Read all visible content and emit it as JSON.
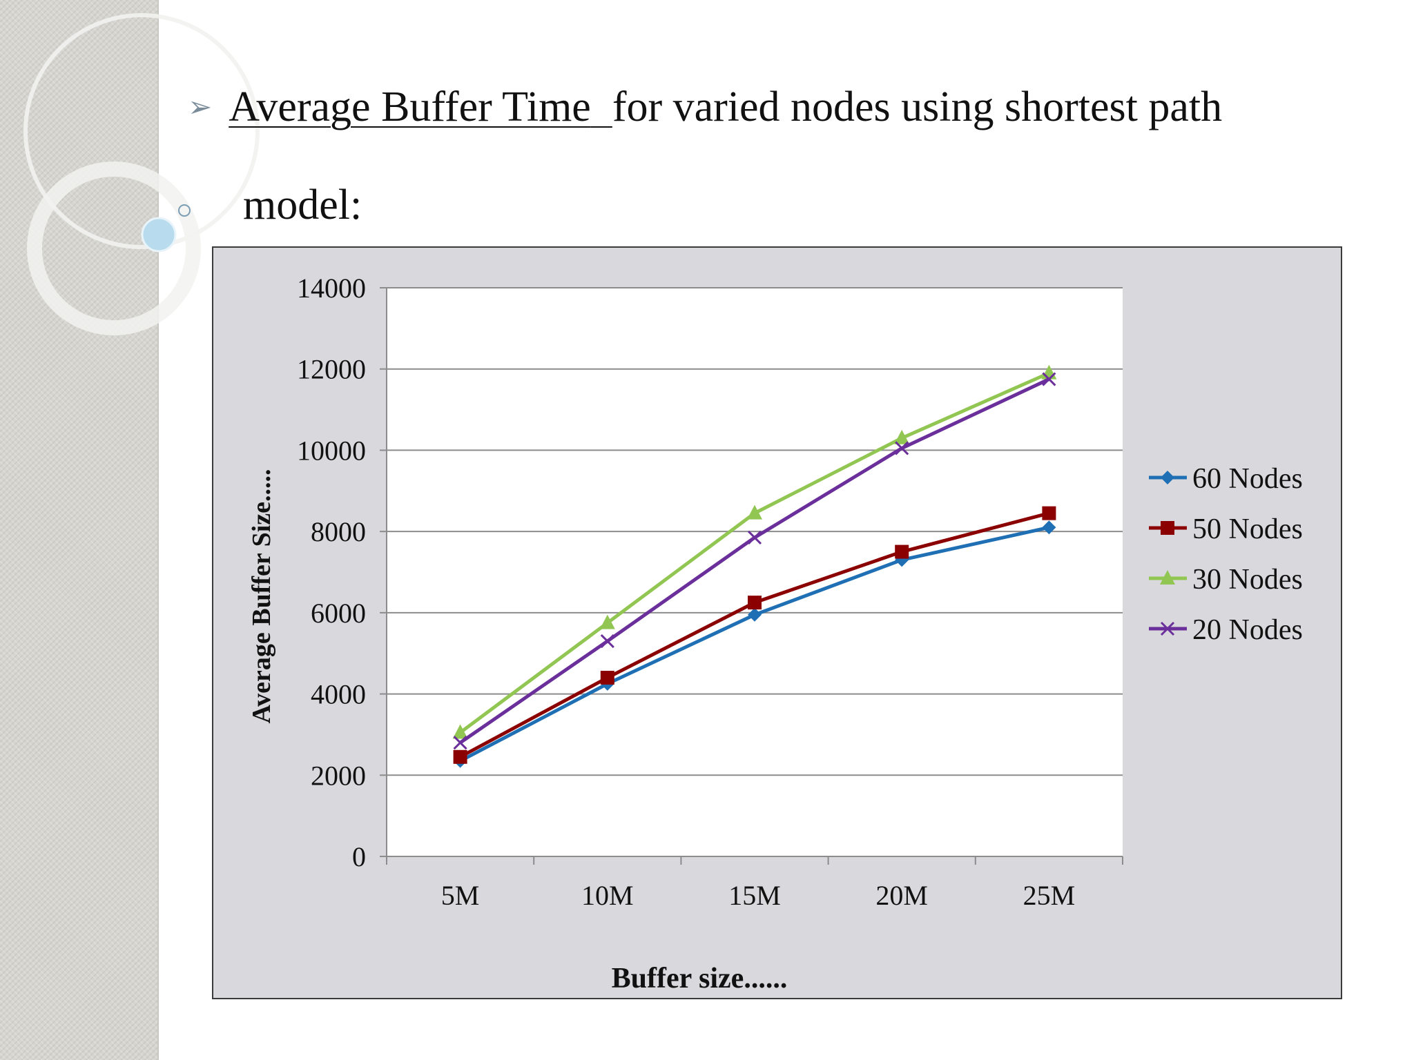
{
  "slide": {
    "title_underlined": "Average Buffer Time",
    "title_rest": "for varied nodes using shortest path",
    "title_line2": "model:"
  },
  "chart_data": {
    "type": "line",
    "categories": [
      "5M",
      "10M",
      "15M",
      "20M",
      "25M"
    ],
    "xlabel": "Buffer size......",
    "ylabel": "Average Buffer Size.....",
    "ylim": [
      0,
      14000
    ],
    "yticks": [
      0,
      2000,
      4000,
      6000,
      8000,
      10000,
      12000,
      14000
    ],
    "grid": true,
    "legend_position": "right",
    "series": [
      {
        "name": "60 Nodes",
        "values": [
          2350,
          4250,
          5950,
          7300,
          8100
        ],
        "color": "#1f6fb5",
        "marker": "diamond"
      },
      {
        "name": "50 Nodes",
        "values": [
          2450,
          4400,
          6250,
          7500,
          8450
        ],
        "color": "#8b0000",
        "marker": "square"
      },
      {
        "name": "30 Nodes",
        "values": [
          3050,
          5750,
          8450,
          10300,
          11900
        ],
        "color": "#92c652",
        "marker": "triangle"
      },
      {
        "name": "20 Nodes",
        "values": [
          2800,
          5300,
          7850,
          10050,
          11750
        ],
        "color": "#6a2f9a",
        "marker": "x"
      }
    ]
  }
}
